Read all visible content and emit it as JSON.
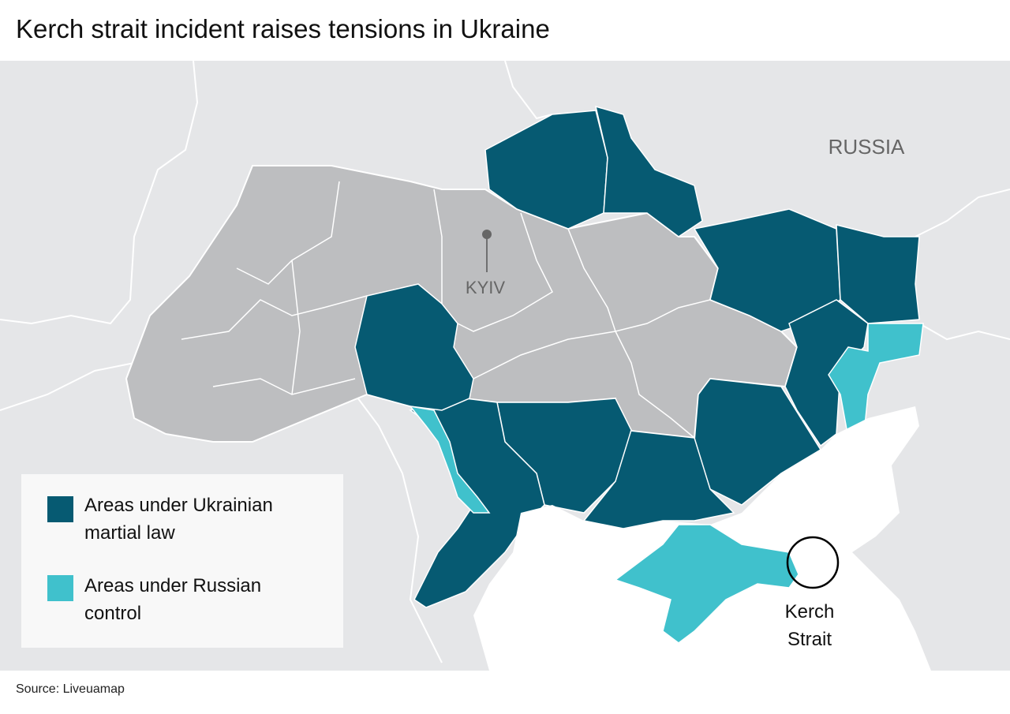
{
  "title": "Kerch strait incident raises tensions in Ukraine",
  "labels": {
    "russia": "RUSSIA",
    "kyiv": "KYIV",
    "kerch": [
      "Kerch",
      "Strait"
    ]
  },
  "legend": [
    {
      "label": "Areas under Ukrainian martial law",
      "color": "#065a72"
    },
    {
      "label": "Areas under Russian control",
      "color": "#40c1cc"
    }
  ],
  "source": "Source: Liveuamap",
  "colors": {
    "land": "#e5e6e8",
    "ukraine_other": "#bdbec0",
    "sea": "#ffffff"
  }
}
